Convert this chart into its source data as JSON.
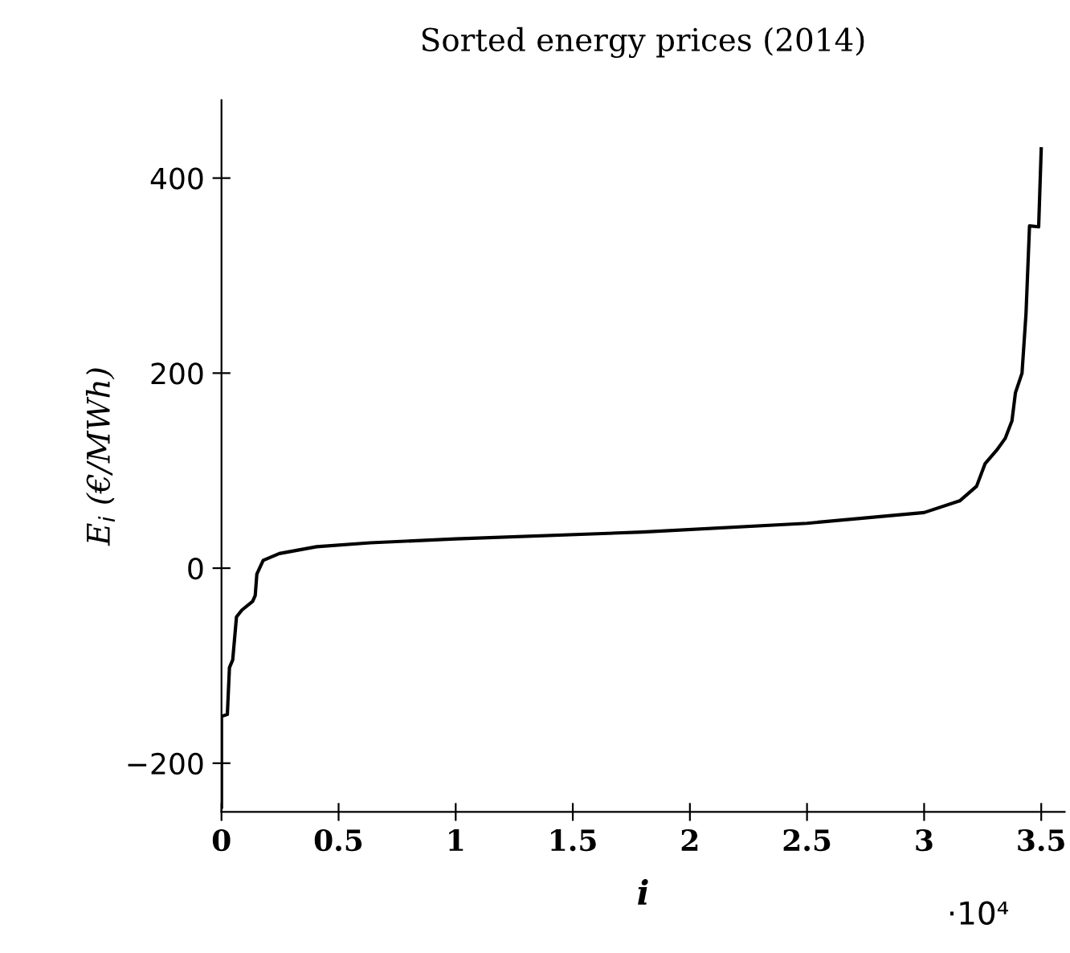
{
  "chart_data": {
    "type": "line",
    "title": "Sorted energy prices (2014)",
    "xlabel": "i",
    "ylabel": "E$_{i}$ (€/MWh)",
    "annotations": [
      "·10⁴"
    ],
    "series": [
      {
        "color": "#000000",
        "x": [
          0,
          0,
          0.025,
          0.034,
          0.048,
          0.064,
          0.087,
          0.133,
          0.144,
          0.151,
          0.178,
          0.247,
          0.406,
          0.635,
          1.0,
          1.797,
          2.5,
          3.0,
          3.152,
          3.224,
          3.26,
          3.31,
          3.346,
          3.375,
          3.39,
          3.418,
          3.435,
          3.45,
          3.489,
          3.5
        ],
        "values": [
          -245,
          -152,
          -150,
          -102,
          -94,
          -50,
          -43,
          -34,
          -28,
          -6,
          8,
          15,
          22,
          26,
          30,
          37,
          46,
          57,
          69,
          84,
          107,
          121,
          133,
          151,
          180,
          200,
          261,
          351,
          350,
          430
        ]
      }
    ],
    "xlim": [
      0,
      3.6
    ],
    "ylim": [
      -250,
      480
    ],
    "xticks": [
      0,
      0.5,
      1,
      1.5,
      2,
      2.5,
      3,
      3.5
    ],
    "yticks": [
      {
        "value": -200,
        "label": "−200"
      },
      0,
      200,
      400
    ],
    "grid": false,
    "legend": false,
    "marker": "none",
    "line_style": "solid"
  }
}
